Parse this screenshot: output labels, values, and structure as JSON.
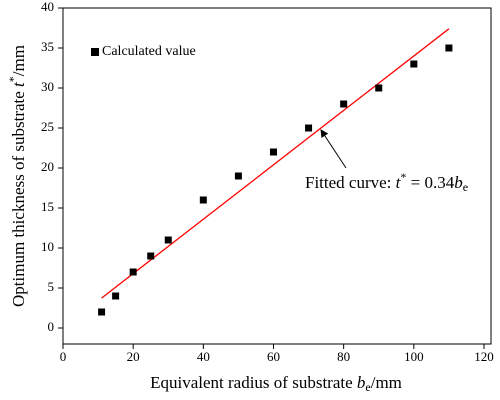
{
  "chart_data": {
    "type": "scatter",
    "x_label": [
      "Equivalent radius of substrate ",
      "b",
      "e",
      "/mm"
    ],
    "y_label": [
      "Optimum thickness of substrate ",
      "t",
      "*",
      "/mm"
    ],
    "series": [
      {
        "name": "Calculated value",
        "color": "#000000",
        "x": [
          11,
          15,
          20,
          25,
          30,
          40,
          50,
          60,
          70,
          80,
          90,
          100,
          110
        ],
        "values": [
          2,
          4,
          7,
          9,
          11,
          16,
          19,
          22,
          25,
          28,
          30,
          33,
          35
        ]
      }
    ],
    "fit": {
      "x": [
        11,
        110
      ],
      "values": [
        3.74,
        37.4
      ],
      "color": "#ff0000"
    },
    "annotation": [
      "Fitted curve: ",
      "t",
      "*",
      " = 0.34",
      "b",
      "e"
    ],
    "xlim": [
      0,
      122
    ],
    "xticks": [
      0,
      20,
      40,
      60,
      80,
      100,
      120
    ],
    "ylim": [
      -2,
      40
    ],
    "yticks": [
      0,
      5,
      10,
      15,
      20,
      25,
      30,
      35,
      40
    ]
  }
}
